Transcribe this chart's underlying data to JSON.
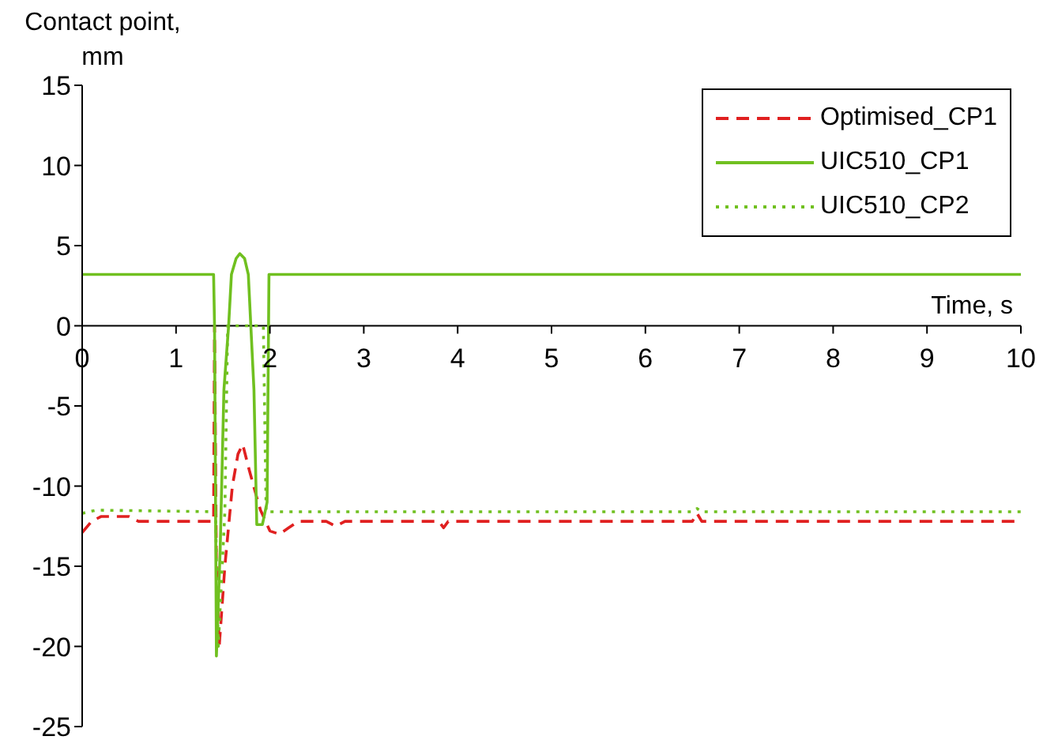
{
  "chart_data": {
    "type": "line",
    "ylabel": "Contact point, mm",
    "xlabel": "Time, s",
    "xlim": [
      0,
      10
    ],
    "xticks": [
      0,
      1,
      2,
      3,
      4,
      5,
      6,
      7,
      8,
      9,
      10
    ],
    "ylim": [
      -25,
      15
    ],
    "yticks": [
      -25,
      -20,
      -15,
      -10,
      -5,
      0,
      5,
      10,
      15
    ],
    "legend": "top right",
    "marker": "none",
    "series": [
      {
        "name": "Optimised_CP1",
        "color": "#e02020",
        "line_style": "dashed",
        "x": [
          0,
          0.1,
          0.2,
          0.5,
          0.6,
          1.0,
          1.4,
          1.41,
          1.43,
          1.46,
          1.52,
          1.6,
          1.66,
          1.71,
          1.78,
          1.85,
          1.9,
          2.0,
          2.1,
          2.2,
          2.3,
          2.6,
          2.7,
          2.8,
          3.8,
          3.85,
          3.9,
          4.5,
          5.0,
          6.5,
          6.55,
          6.6,
          10
        ],
        "values": [
          -12.9,
          -12.2,
          -11.9,
          -11.9,
          -12.2,
          -12.2,
          -12.2,
          0,
          -15,
          -20,
          -15,
          -10,
          -8,
          -7.4,
          -9,
          -10.5,
          -11.5,
          -12.8,
          -13,
          -12.6,
          -12.2,
          -12.2,
          -12.5,
          -12.2,
          -12.2,
          -12.6,
          -12.2,
          -12.2,
          -12.2,
          -12.2,
          -11.7,
          -12.2,
          -12.2
        ]
      },
      {
        "name": "UIC510_CP1",
        "color": "#70c020",
        "line_style": "solid",
        "x": [
          0,
          1.4,
          1.41,
          1.43,
          1.47,
          1.51,
          1.56,
          1.59,
          1.64,
          1.68,
          1.73,
          1.77,
          1.83,
          1.86,
          1.92,
          1.97,
          1.99,
          10
        ],
        "values": [
          3.2,
          3.2,
          0,
          -20.6,
          -14,
          -4,
          0,
          3.2,
          4.2,
          4.5,
          4.2,
          3.2,
          -4,
          -12.4,
          -12.4,
          -11,
          3.2,
          3.2
        ]
      },
      {
        "name": "UIC510_CP2",
        "color": "#70c020",
        "line_style": "dotted",
        "x": [
          0,
          0.15,
          1.42,
          1.45,
          1.52,
          1.55,
          1.93,
          1.96,
          6.5,
          6.55,
          6.6,
          10
        ],
        "values": [
          -11.7,
          -11.5,
          -11.6,
          -20,
          -11.6,
          0,
          0,
          -11.6,
          -11.6,
          -11.4,
          -11.6,
          -11.6
        ]
      }
    ]
  }
}
